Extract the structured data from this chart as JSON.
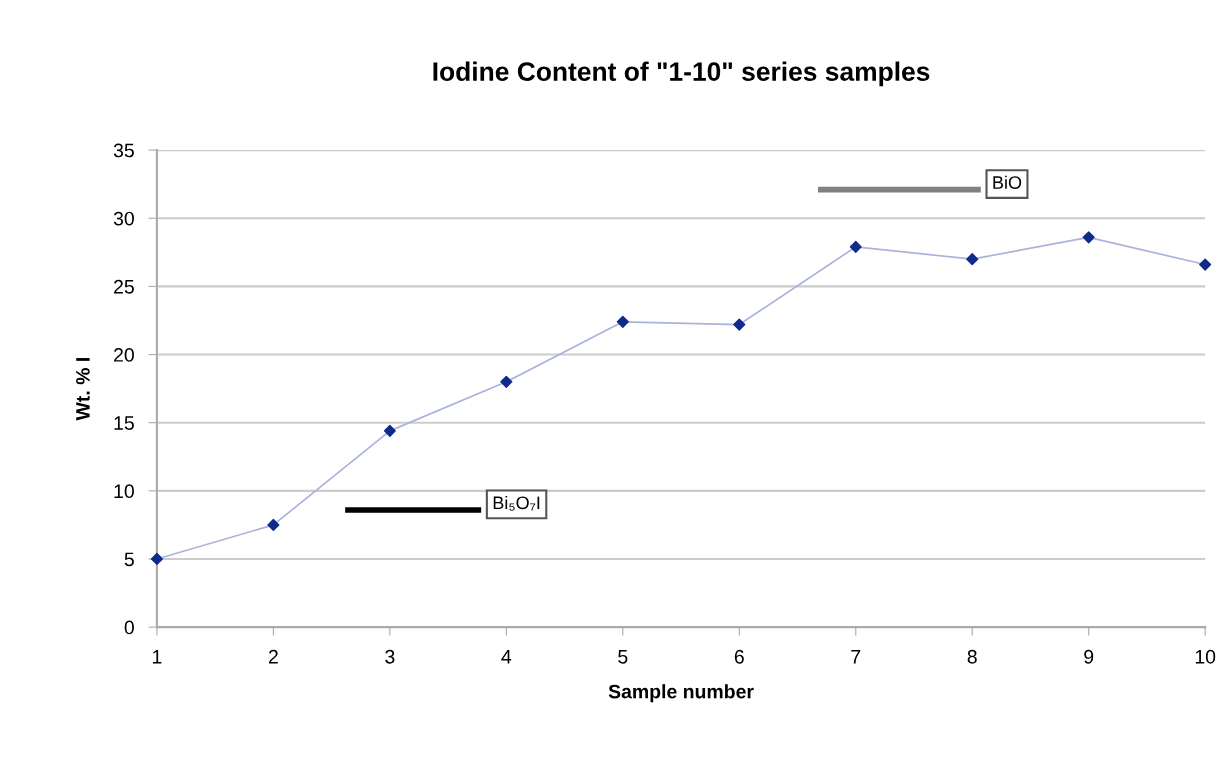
{
  "chart_data": {
    "type": "line",
    "title": "Iodine Content of \"1-10\" series samples",
    "xlabel": "Sample number",
    "ylabel": "Wt. % I",
    "x": [
      1,
      2,
      3,
      4,
      5,
      6,
      7,
      8,
      9,
      10
    ],
    "series": [
      {
        "color": "#aab2dd",
        "colors": [
          "#102a8c",
          "#102a8c",
          "#102a8c",
          "#102a8c",
          "#102a8c",
          "#102a8c",
          "#102a8c",
          "#102a8c",
          "#102a8c",
          "#102a8c"
        ],
        "marker": "diamond",
        "values": [
          5,
          7.5,
          14.4,
          18.0,
          22.4,
          22.2,
          27.9,
          27.0,
          28.6,
          26.6
        ]
      },
      {
        "name": "Bi₅O₇I",
        "color": "#000000",
        "x": [
          2.64,
          3.76
        ],
        "values": [
          8.6,
          8.6
        ],
        "marker": "none"
      },
      {
        "name": "BiO",
        "color": "#808080",
        "x": [
          6.7,
          8.05
        ],
        "values": [
          32.1,
          32.1
        ],
        "marker": "none"
      }
    ],
    "xlim": [
      1,
      10
    ],
    "xticks": [
      1,
      2,
      3,
      4,
      5,
      6,
      7,
      8,
      9,
      10
    ],
    "ylim": [
      0,
      35
    ],
    "yticks": [
      0,
      5,
      10,
      15,
      20,
      25,
      30,
      35
    ],
    "grid": "y",
    "line_style": "solid"
  }
}
